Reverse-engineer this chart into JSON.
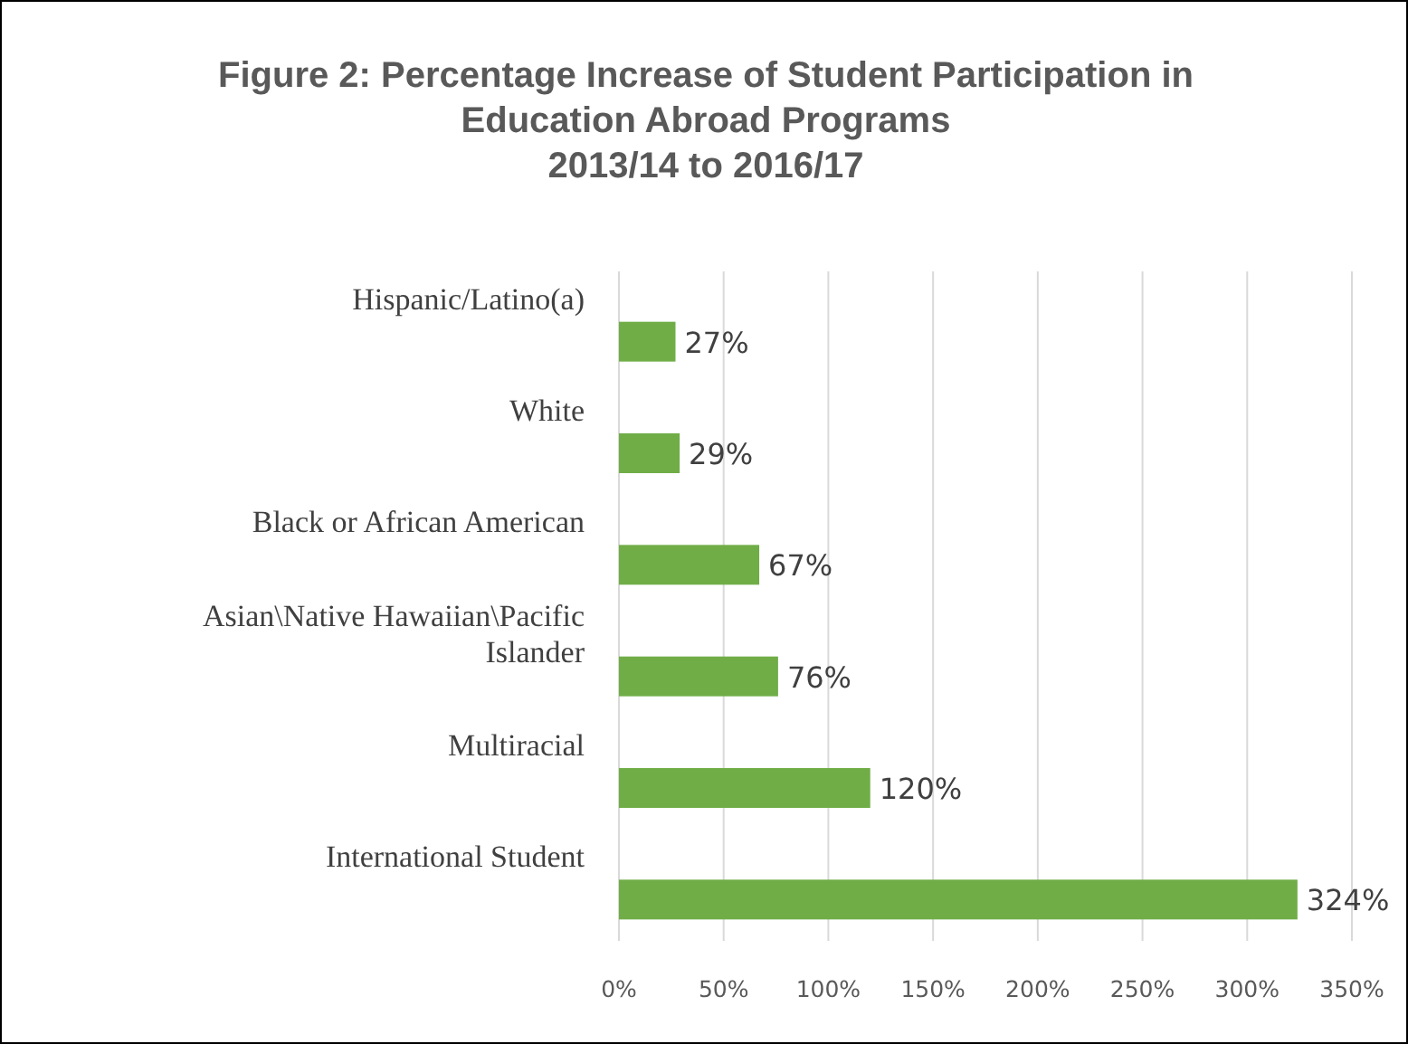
{
  "chart_data": {
    "type": "bar",
    "orientation": "horizontal",
    "title": "Figure 2: Percentage Increase of Student Participation in Education Abroad Programs\n2013/14 to 2016/17",
    "categories": [
      "Hispanic/Latino(a)",
      "White",
      "Black or African American",
      "Asian\\Native Hawaiian\\Pacific Islander",
      "Multiracial",
      "International Student"
    ],
    "values": [
      27,
      29,
      67,
      76,
      120,
      324
    ],
    "value_labels": [
      "27%",
      "29%",
      "67%",
      "76%",
      "120%",
      "324%"
    ],
    "color": "#70ad47",
    "xlim": [
      0,
      350
    ],
    "xticks": [
      {
        "value": 0,
        "label": "0%"
      },
      {
        "value": 50,
        "label": "50%"
      },
      {
        "value": 100,
        "label": "100%"
      },
      {
        "value": 150,
        "label": "150%"
      },
      {
        "value": 200,
        "label": "200%"
      },
      {
        "value": 250,
        "label": "250%"
      },
      {
        "value": 300,
        "label": "300%"
      },
      {
        "value": 350,
        "label": "350%"
      }
    ],
    "grid": "x"
  }
}
